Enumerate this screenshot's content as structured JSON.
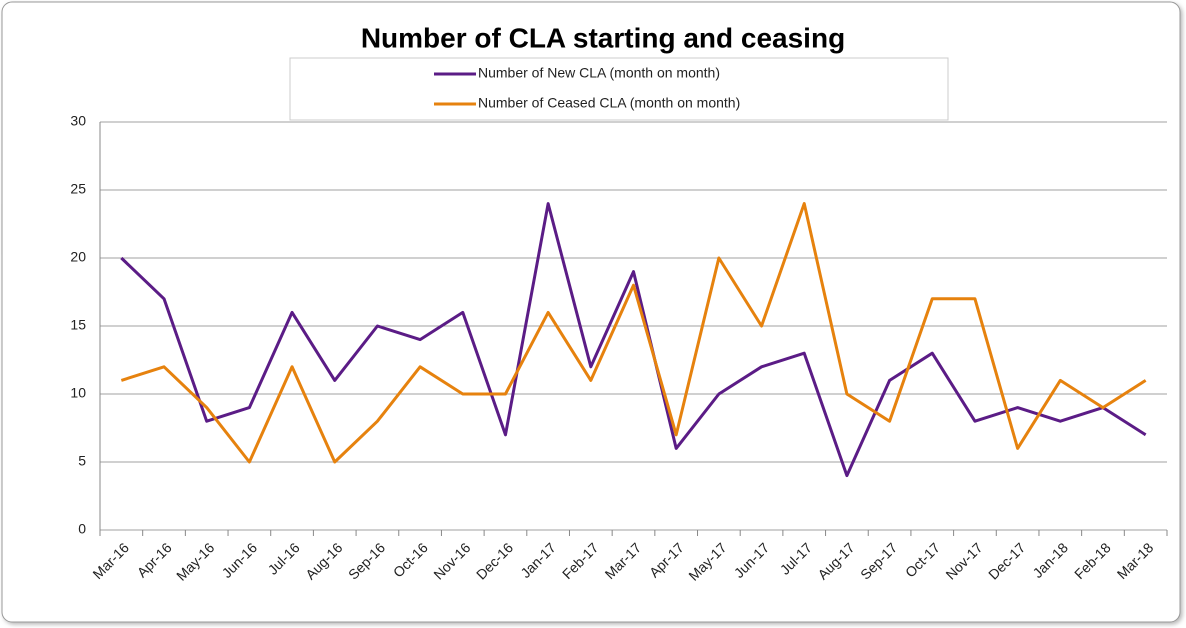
{
  "chart_data": {
    "type": "line",
    "title": "Number of CLA starting and ceasing",
    "categories": [
      "Mar-16",
      "Apr-16",
      "May-16",
      "Jun-16",
      "Jul-16",
      "Aug-16",
      "Sep-16",
      "Oct-16",
      "Nov-16",
      "Dec-16",
      "Jan-17",
      "Feb-17",
      "Mar-17",
      "Apr-17",
      "May-17",
      "Jun-17",
      "Jul-17",
      "Aug-17",
      "Sep-17",
      "Oct-17",
      "Nov-17",
      "Dec-17",
      "Jan-18",
      "Feb-18",
      "Mar-18"
    ],
    "series": [
      {
        "name": "Number of New CLA (month on month)",
        "color": "#5b1c86",
        "values": [
          20,
          17,
          8,
          9,
          16,
          11,
          15,
          14,
          16,
          7,
          24,
          12,
          19,
          6,
          10,
          12,
          13,
          4,
          11,
          13,
          8,
          9,
          8,
          9,
          7
        ]
      },
      {
        "name": "Number of Ceased CLA (month on month)",
        "color": "#e6820e",
        "values": [
          11,
          12,
          9,
          5,
          12,
          5,
          8,
          12,
          10,
          10,
          16,
          11,
          18,
          7,
          20,
          15,
          24,
          10,
          8,
          17,
          17,
          6,
          11,
          9,
          11
        ]
      }
    ],
    "ylim": [
      0,
      30
    ],
    "yticks": [
      0,
      5,
      10,
      15,
      20,
      25,
      30
    ],
    "grid": true,
    "legend": "top"
  }
}
